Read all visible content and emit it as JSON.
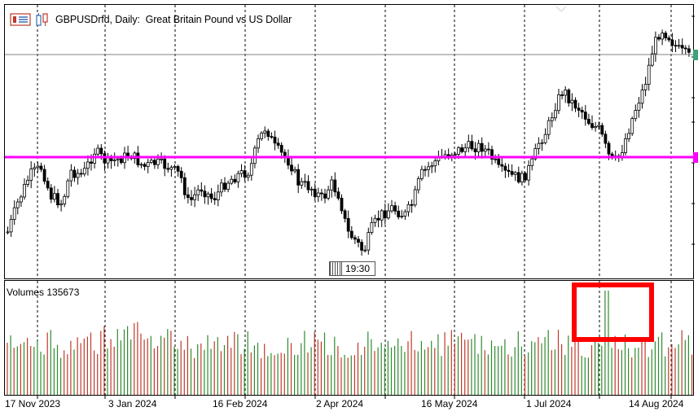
{
  "window": {
    "title": "GBPUSDrfd, Daily:  Great Britain Pound vs US Dollar"
  },
  "icons": {
    "chart_menu_icon": "chart-menu-icon",
    "symbol_icon": "symbol-properties-icon"
  },
  "volume_panel": {
    "label": "Volumes 135673"
  },
  "time_tag": {
    "label": "19:30"
  },
  "x_axis": {
    "labels": [
      "17 Nov 2023",
      "3 Jan 2024",
      "16 Feb 2024",
      "2 Apr 2024",
      "16 May 2024",
      "1 Jul 2024",
      "14 Aug 2024"
    ]
  },
  "colors": {
    "bull": "#000000",
    "bear": "#000000",
    "vol_up": "#2e8b2e",
    "vol_down": "#c0392b",
    "horizontal_line": "#ff00ff",
    "price_line": "#808080",
    "highlight_box": "#ff0000",
    "bid_marker": "#3aa37a"
  },
  "chart_data": {
    "type": "candlestick",
    "symbol": "GBPUSDrfd",
    "timeframe": "Daily",
    "x_labels": [
      "17 Nov 2023",
      "3 Jan 2024",
      "16 Feb 2024",
      "2 Apr 2024",
      "16 May 2024",
      "1 Jul 2024",
      "14 Aug 2024"
    ],
    "annotations": [
      "horizontal magenta level line",
      "red rectangle highlighting volume spike near early August 2024"
    ]
  }
}
